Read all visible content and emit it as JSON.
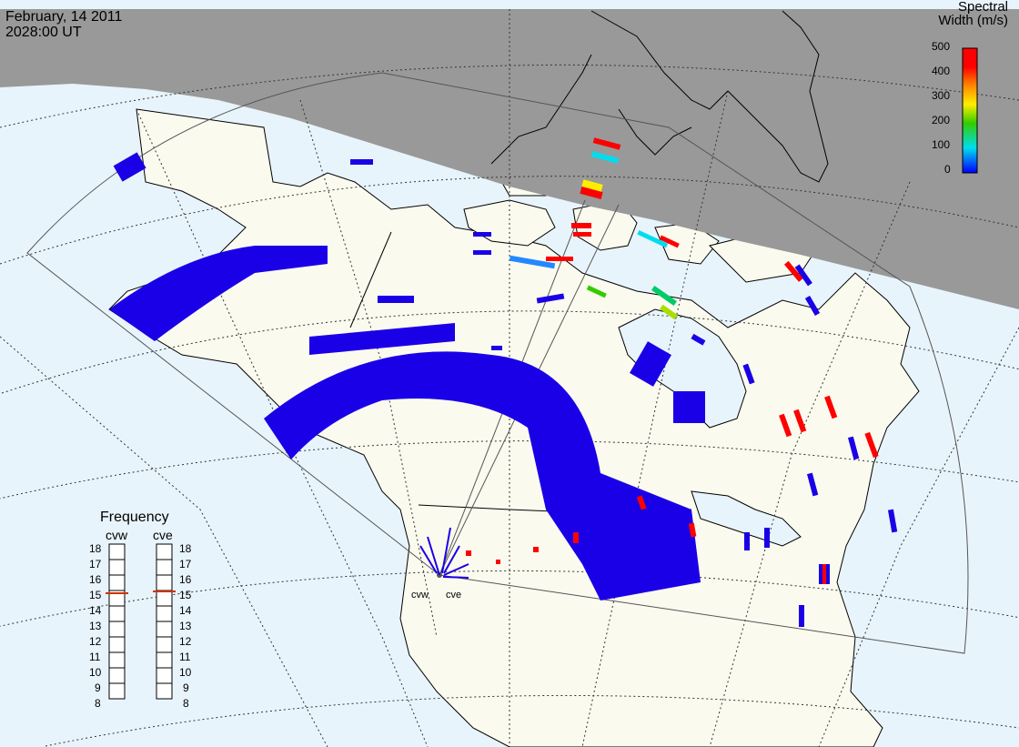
{
  "header": {
    "date": "February, 14 2011",
    "time": "2028:00 UT"
  },
  "legend": {
    "title_line1": "Spectral",
    "title_line2": "Width (m/s)",
    "ticks": [
      "500",
      "400",
      "300",
      "200",
      "100",
      "0"
    ],
    "colors": [
      "#ff0000",
      "#ff8800",
      "#ffee00",
      "#33cc00",
      "#00ddee",
      "#0000ff"
    ]
  },
  "frequency": {
    "title": "Frequency",
    "radars": [
      {
        "name": "cvw",
        "selected": "15"
      },
      {
        "name": "cve",
        "selected": "15"
      }
    ],
    "ticks": [
      "18",
      "17",
      "16",
      "15",
      "14",
      "13",
      "12",
      "11",
      "10",
      "9",
      "8"
    ]
  },
  "sites": [
    "cvw",
    "cve"
  ],
  "colors": {
    "night_region": "#999999",
    "ocean": "#e8f4fb",
    "land": "#fbfaef",
    "scatter_low": "#1a00e6",
    "scatter_high": "#ff0000",
    "marker": "#cc3300"
  }
}
